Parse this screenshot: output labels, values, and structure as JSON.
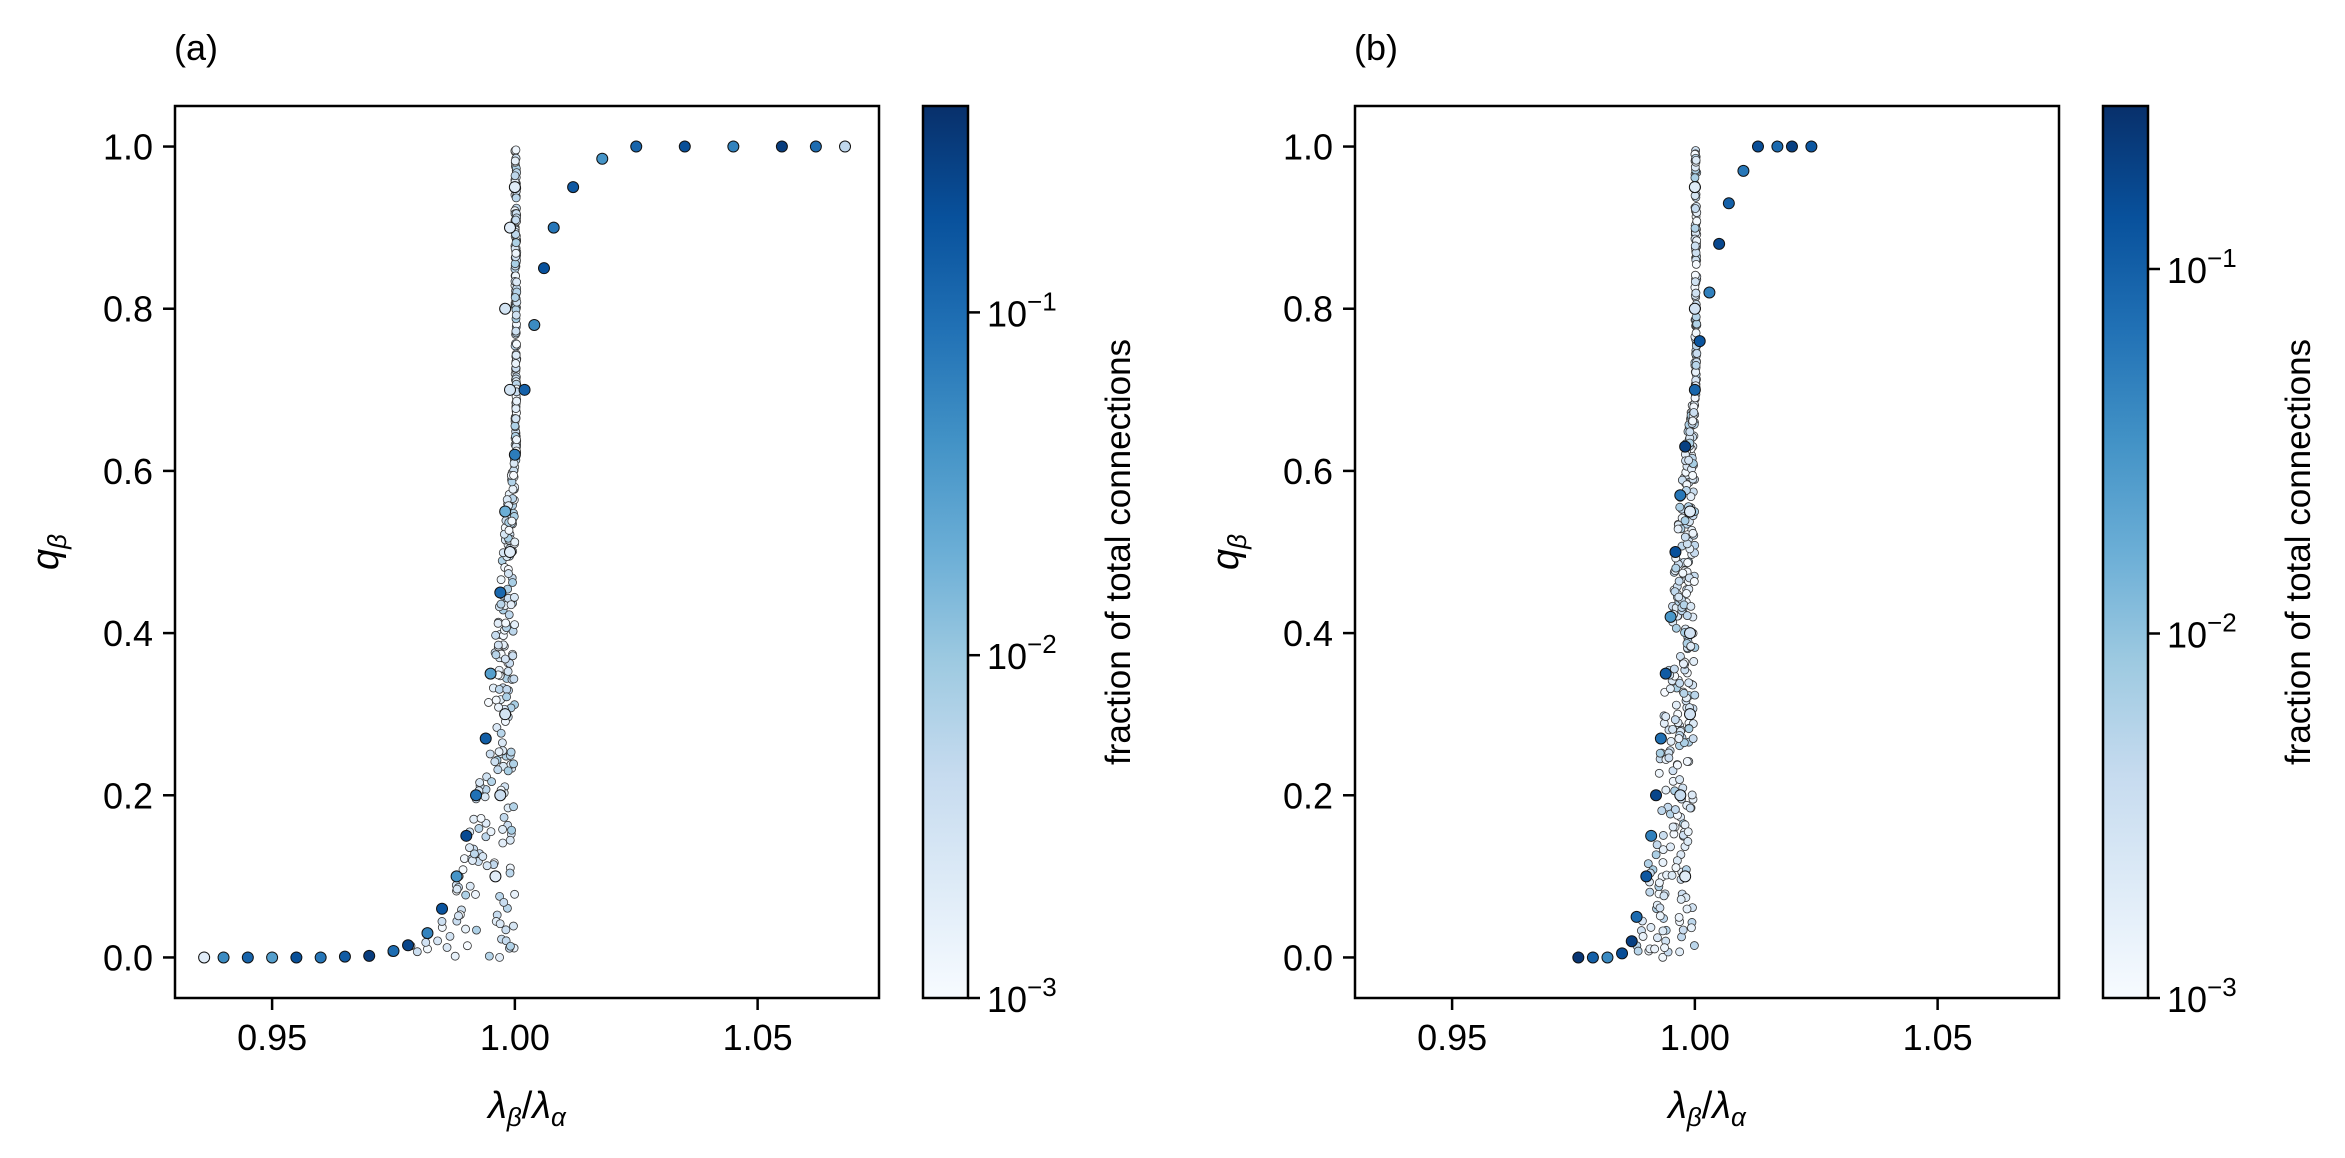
{
  "chart_data": [
    {
      "type": "scatter",
      "panel_label": "(a)",
      "xlabel": "λβ/λα",
      "ylabel": "qβ",
      "xlim": [
        0.93,
        1.075
      ],
      "ylim": [
        -0.05,
        1.05
      ],
      "xticks": [
        0.95,
        1.0,
        1.05
      ],
      "xtick_labels": [
        "0.95",
        "1.00",
        "1.05"
      ],
      "yticks": [
        0.0,
        0.2,
        0.4,
        0.6,
        0.8,
        1.0
      ],
      "ytick_labels": [
        "0.0",
        "0.2",
        "0.4",
        "0.6",
        "0.8",
        "1.0"
      ],
      "grid": false,
      "colorbar": {
        "label": "fraction of total connections",
        "scale": "log",
        "range": [
          0.001,
          0.4
        ],
        "colormap": "Blues",
        "ticks": [
          {
            "value": 0.001,
            "label": "10−3"
          },
          {
            "value": 0.01,
            "label": "10−2"
          },
          {
            "value": 0.1,
            "label": "10−1"
          }
        ]
      },
      "series": [
        {
          "points": [
            [
              0.936,
              0.0,
              0.002
            ],
            [
              0.94,
              0.0,
              0.05
            ],
            [
              0.945,
              0.0,
              0.12
            ],
            [
              0.95,
              0.0,
              0.03
            ],
            [
              0.955,
              0.0,
              0.2
            ],
            [
              0.96,
              0.0,
              0.08
            ],
            [
              0.965,
              0.001,
              0.15
            ],
            [
              0.97,
              0.002,
              0.3
            ],
            [
              0.975,
              0.008,
              0.1
            ],
            [
              0.978,
              0.015,
              0.25
            ],
            [
              0.982,
              0.03,
              0.06
            ],
            [
              0.985,
              0.06,
              0.18
            ],
            [
              0.988,
              0.1,
              0.04
            ],
            [
              0.99,
              0.15,
              0.22
            ],
            [
              0.992,
              0.2,
              0.09
            ],
            [
              0.994,
              0.27,
              0.14
            ],
            [
              0.995,
              0.35,
              0.03
            ],
            [
              0.997,
              0.45,
              0.11
            ],
            [
              0.998,
              0.55,
              0.02
            ],
            [
              1.0,
              0.62,
              0.07
            ],
            [
              1.002,
              0.7,
              0.13
            ],
            [
              1.004,
              0.78,
              0.05
            ],
            [
              1.006,
              0.85,
              0.19
            ],
            [
              1.008,
              0.9,
              0.08
            ],
            [
              1.012,
              0.95,
              0.16
            ],
            [
              1.018,
              0.985,
              0.04
            ],
            [
              1.025,
              1.0,
              0.12
            ],
            [
              1.035,
              1.0,
              0.2
            ],
            [
              1.045,
              1.0,
              0.06
            ],
            [
              1.055,
              1.0,
              0.3
            ],
            [
              1.062,
              1.0,
              0.1
            ],
            [
              1.068,
              1.0,
              0.005
            ],
            [
              0.996,
              0.1,
              0.002
            ],
            [
              0.998,
              0.3,
              0.003
            ],
            [
              0.999,
              0.5,
              0.002
            ],
            [
              0.999,
              0.7,
              0.003
            ],
            [
              0.999,
              0.9,
              0.002
            ],
            [
              0.997,
              0.2,
              0.004
            ],
            [
              0.998,
              0.8,
              0.003
            ],
            [
              1.0,
              0.95,
              0.002
            ]
          ]
        }
      ]
    },
    {
      "type": "scatter",
      "panel_label": "(b)",
      "xlabel": "λβ/λα",
      "ylabel": "qβ",
      "xlim": [
        0.93,
        1.075
      ],
      "ylim": [
        -0.05,
        1.05
      ],
      "xticks": [
        0.95,
        1.0,
        1.05
      ],
      "xtick_labels": [
        "0.95",
        "1.00",
        "1.05"
      ],
      "yticks": [
        0.0,
        0.2,
        0.4,
        0.6,
        0.8,
        1.0
      ],
      "ytick_labels": [
        "0.0",
        "0.2",
        "0.4",
        "0.6",
        "0.8",
        "1.0"
      ],
      "grid": false,
      "colorbar": {
        "label": "fraction of total connections",
        "scale": "log",
        "range": [
          0.001,
          0.28
        ],
        "colormap": "Blues",
        "ticks": [
          {
            "value": 0.001,
            "label": "10−3"
          },
          {
            "value": 0.01,
            "label": "10−2"
          },
          {
            "value": 0.1,
            "label": "10−1"
          }
        ]
      },
      "series": [
        {
          "points": [
            [
              0.976,
              0.0,
              0.25
            ],
            [
              0.979,
              0.0,
              0.1
            ],
            [
              0.982,
              0.0,
              0.04
            ],
            [
              0.985,
              0.005,
              0.15
            ],
            [
              0.987,
              0.02,
              0.2
            ],
            [
              0.988,
              0.05,
              0.08
            ],
            [
              0.99,
              0.1,
              0.12
            ],
            [
              0.991,
              0.15,
              0.05
            ],
            [
              0.992,
              0.2,
              0.18
            ],
            [
              0.993,
              0.27,
              0.07
            ],
            [
              0.994,
              0.35,
              0.11
            ],
            [
              0.995,
              0.42,
              0.03
            ],
            [
              0.996,
              0.5,
              0.14
            ],
            [
              0.997,
              0.57,
              0.06
            ],
            [
              0.998,
              0.63,
              0.2
            ],
            [
              1.0,
              0.7,
              0.09
            ],
            [
              1.001,
              0.76,
              0.13
            ],
            [
              1.003,
              0.82,
              0.05
            ],
            [
              1.005,
              0.88,
              0.17
            ],
            [
              1.007,
              0.93,
              0.1
            ],
            [
              1.01,
              0.97,
              0.06
            ],
            [
              1.013,
              1.0,
              0.15
            ],
            [
              1.017,
              1.0,
              0.08
            ],
            [
              1.02,
              1.0,
              0.2
            ],
            [
              1.024,
              1.0,
              0.12
            ],
            [
              0.998,
              0.1,
              0.002
            ],
            [
              0.999,
              0.3,
              0.003
            ],
            [
              0.999,
              0.55,
              0.002
            ],
            [
              1.0,
              0.8,
              0.003
            ],
            [
              1.0,
              0.95,
              0.002
            ],
            [
              0.997,
              0.2,
              0.004
            ],
            [
              0.999,
              0.4,
              0.003
            ]
          ]
        }
      ]
    }
  ]
}
